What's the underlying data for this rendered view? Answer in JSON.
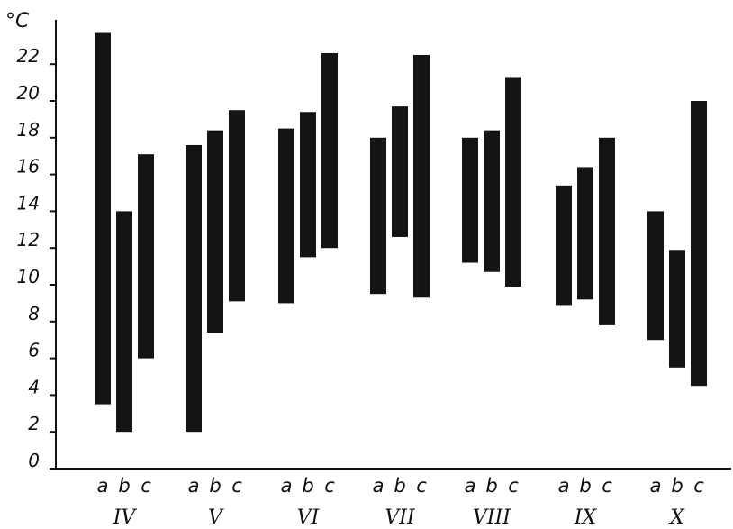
{
  "chart_data": {
    "type": "bar",
    "subtype": "floating-range",
    "y_unit": "°C",
    "ylim": [
      0,
      24
    ],
    "y_ticks": [
      0,
      2,
      4,
      6,
      8,
      10,
      12,
      14,
      16,
      18,
      20,
      22
    ],
    "categories": [
      "IV",
      "V",
      "VI",
      "VII",
      "VIII",
      "IX",
      "X"
    ],
    "sub_labels": [
      "a",
      "b",
      "c"
    ],
    "grid": false,
    "legend": "none",
    "series": [
      {
        "name": "a",
        "ranges": [
          [
            3.5,
            23.7
          ],
          [
            2.0,
            17.6
          ],
          [
            9.0,
            18.5
          ],
          [
            9.5,
            18.0
          ],
          [
            11.2,
            18.0
          ],
          [
            8.9,
            15.4
          ],
          [
            7.0,
            14.0
          ]
        ]
      },
      {
        "name": "b",
        "ranges": [
          [
            2.0,
            14.0
          ],
          [
            7.4,
            18.4
          ],
          [
            11.5,
            19.4
          ],
          [
            12.6,
            19.7
          ],
          [
            10.7,
            18.4
          ],
          [
            9.2,
            16.4
          ],
          [
            5.5,
            11.9
          ]
        ]
      },
      {
        "name": "c",
        "ranges": [
          [
            6.0,
            17.1
          ],
          [
            9.1,
            19.5
          ],
          [
            12.0,
            22.6
          ],
          [
            9.3,
            22.5
          ],
          [
            9.9,
            21.3
          ],
          [
            7.8,
            18.0
          ],
          [
            4.5,
            20.0
          ]
        ]
      }
    ],
    "colors": {
      "bar": "#141414",
      "axis": "#111111"
    }
  }
}
